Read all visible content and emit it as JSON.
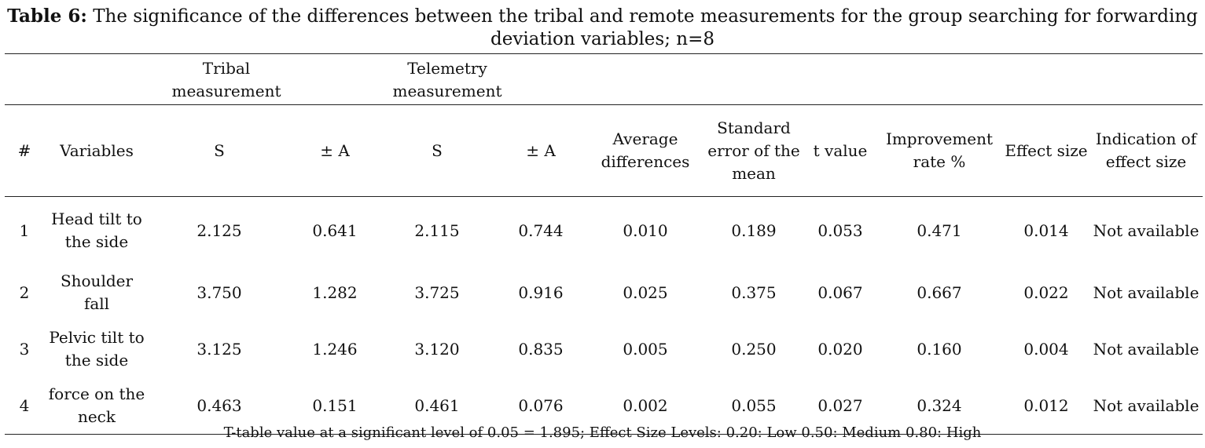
{
  "caption": {
    "label": "Table 6:",
    "text": "The significance of the differences between the tribal and remote measurements for the group searching for forwarding deviation variables; n=8"
  },
  "table": {
    "group_headers": {
      "tribal": "Tribal measurement",
      "telemetry": "Telemetry measurement"
    },
    "columns": [
      "#",
      "Variables",
      "S",
      "± A",
      "S",
      "± A",
      "Average differences",
      "Standard error of the mean",
      "t value",
      "Improvement rate %",
      "Effect size",
      "Indication of effect size"
    ],
    "rows": [
      [
        "1",
        "Head tilt to the side",
        "2.125",
        "0.641",
        "2.115",
        "0.744",
        "0.010",
        "0.189",
        "0.053",
        "0.471",
        "0.014",
        "Not available"
      ],
      [
        "2",
        "Shoulder fall",
        "3.750",
        "1.282",
        "3.725",
        "0.916",
        "0.025",
        "0.375",
        "0.067",
        "0.667",
        "0.022",
        "Not available"
      ],
      [
        "3",
        "Pelvic tilt to the side",
        "3.125",
        "1.246",
        "3.120",
        "0.835",
        "0.005",
        "0.250",
        "0.020",
        "0.160",
        "0.004",
        "Not available"
      ],
      [
        "4",
        "force on the neck",
        "0.463",
        "0.151",
        "0.461",
        "0.076",
        "0.002",
        "0.055",
        "0.027",
        "0.324",
        "0.012",
        "Not available"
      ]
    ]
  },
  "footnote": "T-table value at a significant level of 0.05 = 1.895; Effect Size Levels: 0.20: Low 0.50: Medium 0.80: High"
}
